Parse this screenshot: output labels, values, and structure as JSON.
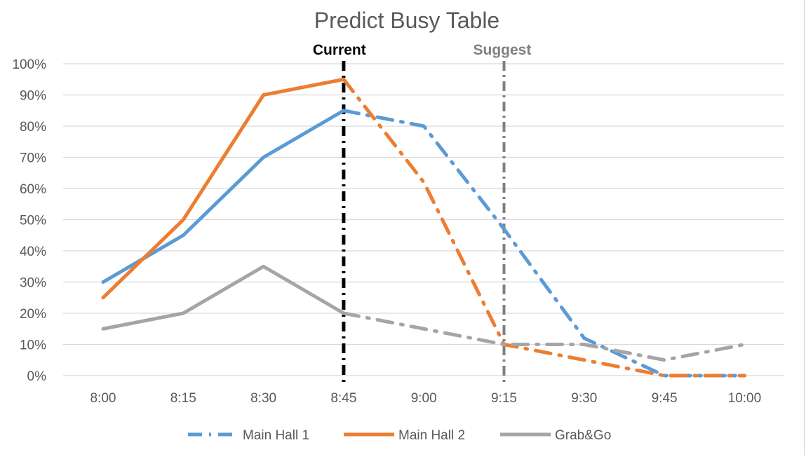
{
  "chart_data": {
    "type": "line",
    "title": "Predict Busy Table",
    "categories": [
      "8:00",
      "8:15",
      "8:30",
      "8:45",
      "9:00",
      "9:15",
      "9:30",
      "9:45",
      "10:00"
    ],
    "y_ticks": [
      "0%",
      "10%",
      "20%",
      "30%",
      "40%",
      "50%",
      "60%",
      "70%",
      "80%",
      "90%",
      "100%"
    ],
    "ylim": [
      0,
      100
    ],
    "grid": true,
    "legend_position": "bottom",
    "series": [
      {
        "name": "Main Hall 1",
        "color": "#5B9BD5",
        "values": [
          30,
          45,
          70,
          85,
          80,
          47,
          12,
          0,
          0
        ],
        "actual_until_index": 3,
        "forecast_style": "dash-dot"
      },
      {
        "name": "Main Hall 2",
        "color": "#ED7D31",
        "values": [
          25,
          50,
          90,
          95,
          62,
          10,
          5,
          0,
          0
        ],
        "actual_until_index": 3,
        "forecast_style": "dash-dot"
      },
      {
        "name": "Grab&Go",
        "color": "#A5A5A5",
        "values": [
          15,
          20,
          35,
          20,
          15,
          10,
          10,
          5,
          10
        ],
        "actual_until_index": 3,
        "forecast_style": "dash-dot"
      }
    ],
    "markers": [
      {
        "label": "Current",
        "at": "8:45",
        "color": "#000000",
        "style": "dash-dot"
      },
      {
        "label": "Suggest",
        "at": "9:15",
        "color": "#808080",
        "style": "dash-dot"
      }
    ]
  }
}
